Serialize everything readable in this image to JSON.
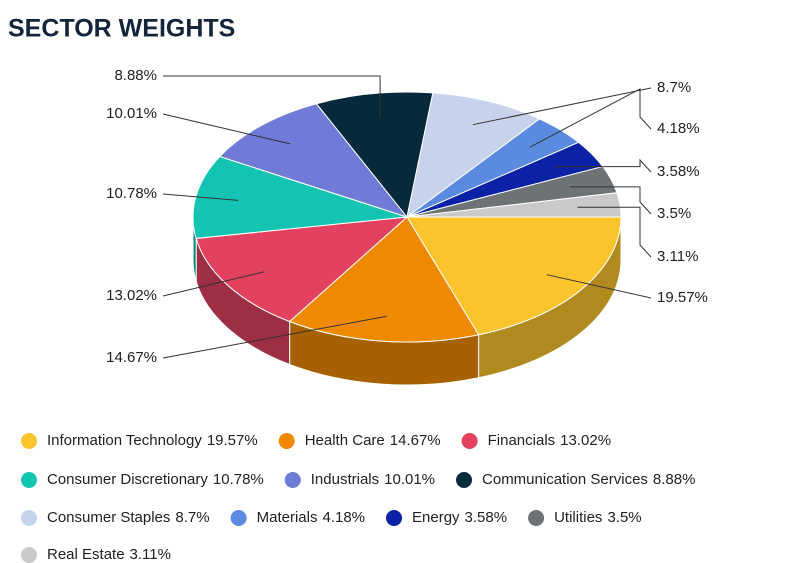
{
  "chart_data": {
    "type": "pie3d",
    "title": "SECTOR WEIGHTS",
    "categories": [
      "Information Technology",
      "Health Care",
      "Financials",
      "Consumer Discretionary",
      "Industrials",
      "Communication Services",
      "Consumer Staples",
      "Materials",
      "Energy",
      "Utilities",
      "Real Estate"
    ],
    "values": [
      19.57,
      14.67,
      13.02,
      10.78,
      10.01,
      8.88,
      8.7,
      4.18,
      3.58,
      3.5,
      3.11
    ],
    "value_labels": [
      "19.57%",
      "14.67%",
      "13.02%",
      "10.78%",
      "10.01%",
      "8.88%",
      "8.7%",
      "4.18%",
      "3.58%",
      "3.5%",
      "3.11%"
    ],
    "colors": [
      "#fcc42c",
      "#ef8a00",
      "#e2425f",
      "#13c4b3",
      "#6f7bd6",
      "#062a3c",
      "#c7d3ec",
      "#5b8be0",
      "#0c22a6",
      "#6d7275",
      "#c9c9c9"
    ]
  }
}
